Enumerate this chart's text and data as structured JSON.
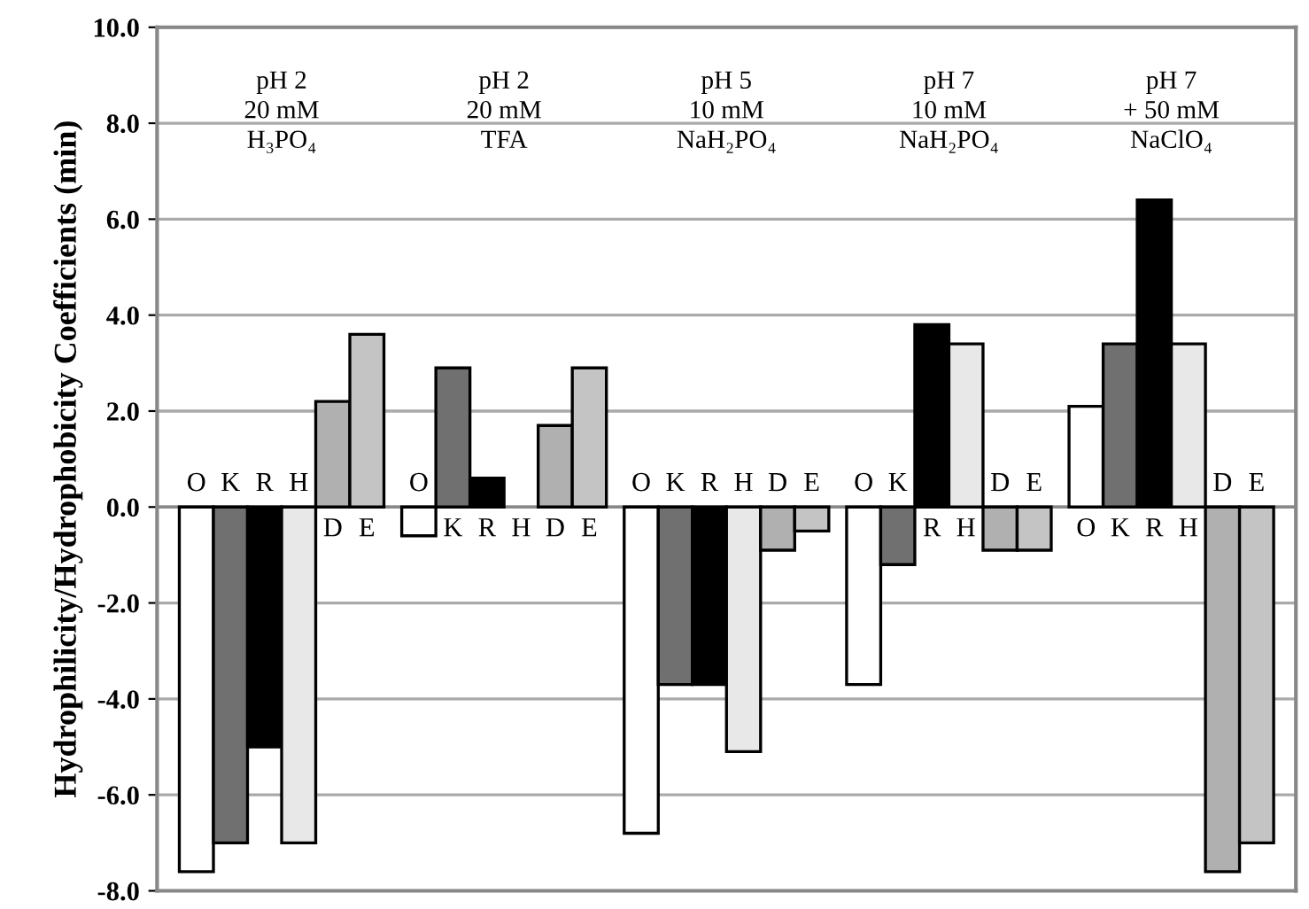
{
  "chart_data": {
    "type": "bar",
    "ylabel": "Hydrophilicity/Hydrophobicity Coefficients (min)",
    "categories": [
      "pH 2\n20 mM\nH₃PO₄",
      "pH 2\n20 mM\nTFA",
      "pH 5\n10 mM\nNaH₂PO₄",
      "pH 7\n10 mM\nNaH₂PO₄",
      "pH 7\n+ 50 mM\nNaClO₄"
    ],
    "series": [
      {
        "name": "O",
        "color": "#ffffff",
        "values": [
          -7.6,
          -0.6,
          -6.8,
          -3.7,
          2.1
        ]
      },
      {
        "name": "K",
        "color": "#707070",
        "values": [
          -7.0,
          2.9,
          -3.7,
          -1.2,
          3.4
        ]
      },
      {
        "name": "R",
        "color": "#000000",
        "values": [
          -5.0,
          0.6,
          -3.7,
          3.8,
          6.4
        ]
      },
      {
        "name": "H",
        "color": "#e8e8e8",
        "values": [
          -7.0,
          null,
          -5.1,
          3.4,
          3.4
        ]
      },
      {
        "name": "D",
        "color": "#b0b0b0",
        "values": [
          2.2,
          1.7,
          -0.9,
          -0.9,
          -7.6
        ]
      },
      {
        "name": "E",
        "color": "#c4c4c4",
        "values": [
          3.6,
          2.9,
          -0.5,
          -0.9,
          -7.0
        ]
      }
    ],
    "ylim": [
      -8,
      10
    ],
    "yticks": [
      {
        "value": -8,
        "label": "-8.0"
      },
      {
        "value": -6,
        "label": "-6.0"
      },
      {
        "value": -4,
        "label": "-4.0"
      },
      {
        "value": -2,
        "label": "-2.0"
      },
      {
        "value": 0,
        "label": "0.0"
      },
      {
        "value": 2,
        "label": "2.0"
      },
      {
        "value": 4,
        "label": "4.0"
      },
      {
        "value": 6,
        "label": "6.0"
      },
      {
        "value": 8,
        "label": "8.0"
      },
      {
        "value": 10,
        "label": "10.0"
      }
    ],
    "grid": "y",
    "legend": false
  }
}
